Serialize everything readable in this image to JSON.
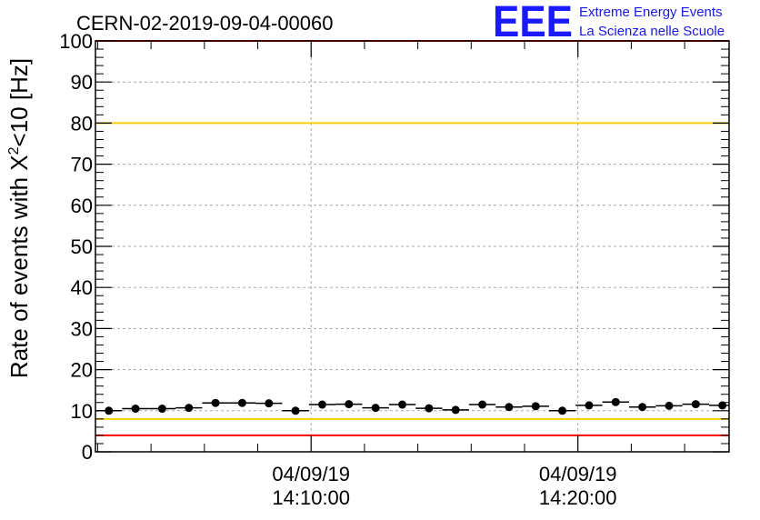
{
  "chart_data": {
    "type": "scatter",
    "title": "CERN-02-2019-09-04-00060",
    "ylabel_main": "Rate of events with X",
    "ylabel_sup": "2",
    "ylabel_rest": "<10 [Hz]",
    "ylim": [
      0,
      100
    ],
    "yticks": [
      "0",
      "10",
      "20",
      "30",
      "40",
      "50",
      "60",
      "70",
      "80",
      "90",
      "100"
    ],
    "xlim": [
      "04/09/19 14:01:55",
      "04/09/19 14:25:40"
    ],
    "xticks": [
      {
        "date": "04/09/19",
        "time": "14:10:00"
      },
      {
        "date": "04/09/19",
        "time": "14:20:00"
      }
    ],
    "grid": true,
    "thresholds": [
      {
        "value": 100,
        "color": "#ff0000"
      },
      {
        "value": 80,
        "color": "#f5d000"
      },
      {
        "value": 8,
        "color": "#f5d000"
      },
      {
        "value": 4,
        "color": "#ff0000"
      }
    ],
    "points": [
      {
        "x": "14:02:25",
        "y": 10.0
      },
      {
        "x": "14:03:25",
        "y": 10.5
      },
      {
        "x": "14:04:25",
        "y": 10.5
      },
      {
        "x": "14:05:25",
        "y": 10.7
      },
      {
        "x": "14:06:25",
        "y": 11.9
      },
      {
        "x": "14:07:25",
        "y": 11.9
      },
      {
        "x": "14:08:25",
        "y": 11.8
      },
      {
        "x": "14:09:25",
        "y": 10.0
      },
      {
        "x": "14:10:25",
        "y": 11.5
      },
      {
        "x": "14:11:25",
        "y": 11.6
      },
      {
        "x": "14:12:25",
        "y": 10.7
      },
      {
        "x": "14:13:25",
        "y": 11.5
      },
      {
        "x": "14:14:25",
        "y": 10.6
      },
      {
        "x": "14:15:25",
        "y": 10.2
      },
      {
        "x": "14:16:25",
        "y": 11.5
      },
      {
        "x": "14:17:25",
        "y": 10.9
      },
      {
        "x": "14:18:25",
        "y": 11.1
      },
      {
        "x": "14:19:25",
        "y": 10.0
      },
      {
        "x": "14:20:25",
        "y": 11.3
      },
      {
        "x": "14:21:25",
        "y": 12.1
      },
      {
        "x": "14:22:25",
        "y": 10.9
      },
      {
        "x": "14:23:25",
        "y": 11.2
      },
      {
        "x": "14:24:25",
        "y": 11.6
      },
      {
        "x": "14:25:25",
        "y": 11.3
      }
    ],
    "bin_width_minutes": 1
  },
  "logo": {
    "mark": "EEE",
    "line1": "Extreme Energy Events",
    "line2": "La Scienza nelle Scuole",
    "color": "#1a1aff"
  }
}
